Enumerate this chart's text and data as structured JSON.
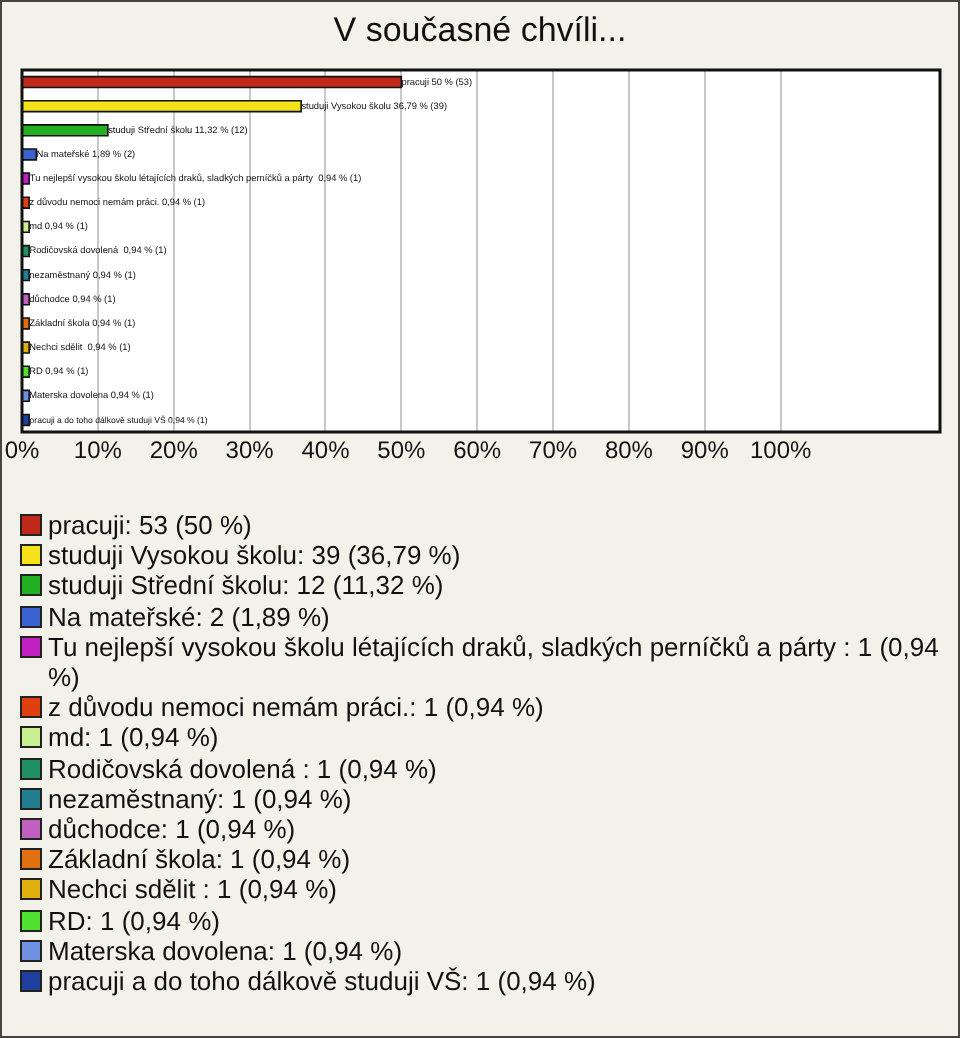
{
  "chart_data": {
    "type": "bar",
    "title": "V současné chvíli...",
    "orientation": "horizontal",
    "categories": [
      null,
      null,
      null,
      null,
      null,
      null,
      null,
      null,
      null,
      null,
      null,
      null,
      null,
      null,
      null
    ],
    "values": [
      50,
      36.79,
      11.32,
      1.89,
      0.94,
      0.94,
      0.94,
      0.94,
      0.94,
      0.94,
      0.94,
      0.94,
      0.94,
      0.94,
      0.94
    ],
    "colors": [
      "#c0281a",
      "#f5e21a",
      "#22b022",
      "#3a62d0",
      "#c020c0",
      "#e04010",
      "#c8f090",
      "#209060",
      "#208090",
      "#c060c0",
      "#e07010",
      "#e0b010",
      "#50e030",
      "#7090e0",
      "#2040a0"
    ],
    "value_labels": [
      "pracuji 50 % (53)",
      "studuji Vysokou školu 36,79 % (39)",
      "studuji Střední školu 11,32 % (12)",
      "Na mateřské 1,89 % (2)",
      "Tu nejlepší vysokou školu létajících draků, sladkých perníčků a párty  0,94 % (1)",
      "z důvodu nemoci nemám práci. 0,94 % (1)",
      "md 0,94 % (1)",
      "Rodičovská dovolená  0,94 % (1)",
      "nezaměstnaný 0,94 % (1)",
      "důchodce 0,94 % (1)",
      "Základní škola 0,94 % (1)",
      "Nechci sdělit  0,94 % (1)",
      "RD 0,94 % (1)",
      "Materska dovolena 0,94 % (1)",
      "pracuji a do toho dálkově studuji VŠ 0,94 % (1)"
    ],
    "xlim": [
      0,
      121
    ],
    "xticks": [
      {
        "value": 0,
        "label": "0%"
      },
      {
        "value": 10,
        "label": "10%"
      },
      {
        "value": 20,
        "label": "20%"
      },
      {
        "value": 30,
        "label": "30%"
      },
      {
        "value": 40,
        "label": "40%"
      },
      {
        "value": 50,
        "label": "50%"
      },
      {
        "value": 60,
        "label": "60%"
      },
      {
        "value": 70,
        "label": "70%"
      },
      {
        "value": 80,
        "label": "80%"
      },
      {
        "value": 90,
        "label": "90%"
      },
      {
        "value": 100,
        "label": "100%"
      }
    ],
    "grid": "x",
    "tick_labels": "x",
    "annotations": [
      "pracuji: 53 (50 %)",
      "studuji Vysokou školu: 39 (36,79 %)",
      "studuji Střední školu: 12 (11,32 %)",
      "Na mateřské: 2 (1,89 %)",
      "Tu nejlepší vysokou školu létajících draků, sladkých perníčků a párty : 1 (0,94 %)",
      "z důvodu nemoci nemám práci.: 1 (0,94 %)",
      "md: 1 (0,94 %)",
      "Rodičovská dovolená : 1 (0,94 %)",
      "nezaměstnaný: 1 (0,94 %)",
      "důchodce: 1 (0,94 %)",
      "Základní škola: 1 (0,94 %)",
      "Nechci sdělit : 1 (0,94 %)",
      "RD: 1 (0,94 %)",
      "Materska dovolena: 1 (0,94 %)",
      "pracuji a do toho dálkově studuji VŠ: 1 (0,94 %)"
    ]
  }
}
